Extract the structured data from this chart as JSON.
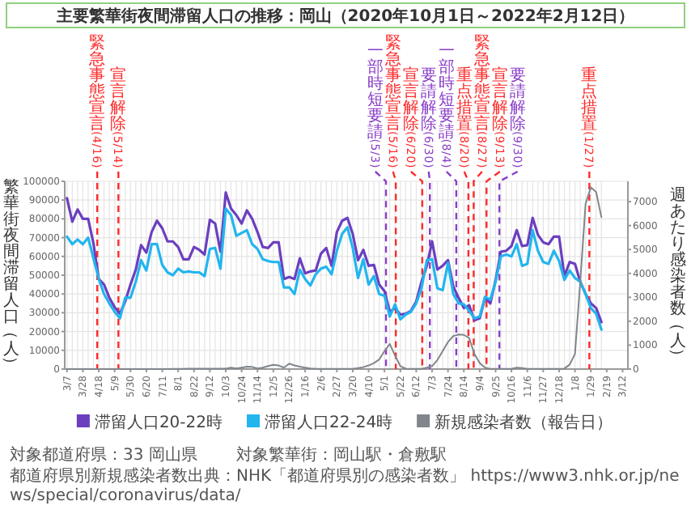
{
  "chart_data": {
    "type": "line",
    "title": "主要繁華街夜間滞留人口の推移：岡山（2020年10月1日～2022年2月12日）",
    "ylabel": "繁華街夜間滞留人口（人）",
    "y2label": "週あたり感染者数（人）",
    "x": [
      "2020-03-07",
      "2020-03-14",
      "2020-03-21",
      "2020-03-28",
      "2020-04-04",
      "2020-04-11",
      "2020-04-18",
      "2020-04-25",
      "2020-05-02",
      "2020-05-09",
      "2020-05-16",
      "2020-05-23",
      "2020-05-30",
      "2020-06-06",
      "2020-06-13",
      "2020-06-20",
      "2020-06-27",
      "2020-07-04",
      "2020-07-11",
      "2020-07-18",
      "2020-07-25",
      "2020-08-01",
      "2020-08-08",
      "2020-08-15",
      "2020-08-22",
      "2020-08-29",
      "2020-09-05",
      "2020-09-12",
      "2020-09-19",
      "2020-09-26",
      "2020-10-03",
      "2020-10-10",
      "2020-10-17",
      "2020-10-24",
      "2020-10-31",
      "2020-11-07",
      "2020-11-14",
      "2020-11-21",
      "2020-11-28",
      "2020-12-05",
      "2020-12-12",
      "2020-12-19",
      "2020-12-26",
      "2021-01-02",
      "2021-01-09",
      "2021-01-16",
      "2021-01-23",
      "2021-01-30",
      "2021-02-06",
      "2021-02-13",
      "2021-02-20",
      "2021-02-27",
      "2021-03-06",
      "2021-03-13",
      "2021-03-20",
      "2021-03-27",
      "2021-04-03",
      "2021-04-10",
      "2021-04-17",
      "2021-04-24",
      "2021-05-01",
      "2021-05-08",
      "2021-05-15",
      "2021-05-22",
      "2021-05-29",
      "2021-06-05",
      "2021-06-12",
      "2021-06-19",
      "2021-06-26",
      "2021-07-03",
      "2021-07-10",
      "2021-07-17",
      "2021-07-24",
      "2021-07-31",
      "2021-08-07",
      "2021-08-14",
      "2021-08-21",
      "2021-08-28",
      "2021-09-04",
      "2021-09-11",
      "2021-09-18",
      "2021-09-25",
      "2021-10-02",
      "2021-10-09",
      "2021-10-16",
      "2021-10-23",
      "2021-10-30",
      "2021-11-06",
      "2021-11-13",
      "2021-11-20",
      "2021-11-27",
      "2021-12-04",
      "2021-12-11",
      "2021-12-18",
      "2021-12-25",
      "2022-01-01",
      "2022-01-08",
      "2022-01-15",
      "2022-01-22",
      "2022-01-29",
      "2022-02-05",
      "2022-02-12"
    ],
    "series": [
      {
        "name": "滞留人口20-22時",
        "color": "#6b3fbf",
        "values": [
          91000,
          78500,
          85000,
          80000,
          80000,
          67000,
          48000,
          45000,
          38000,
          33000,
          29500,
          36000,
          45000,
          53000,
          66000,
          62000,
          73000,
          79000,
          75000,
          68000,
          68000,
          65000,
          58500,
          58500,
          65000,
          63500,
          61000,
          79500,
          77500,
          62500,
          94000,
          85500,
          82000,
          77500,
          84500,
          80000,
          73000,
          65000,
          64500,
          67500,
          67500,
          48000,
          49000,
          48000,
          59000,
          51000,
          52000,
          52500,
          61500,
          64500,
          55000,
          73000,
          79000,
          80500,
          72000,
          58000,
          63500,
          55000,
          55500,
          45000,
          41500,
          30500,
          32500,
          29000,
          29500,
          31000,
          36000,
          46500,
          55000,
          68000,
          53000,
          55000,
          58000,
          44000,
          38000,
          32500,
          34000,
          26000,
          27000,
          38000,
          35000,
          47500,
          62500,
          63000,
          65500,
          74000,
          65500,
          66000,
          80500,
          71500,
          67500,
          66500,
          70500,
          70500,
          49500,
          57000,
          56000,
          46500,
          40000,
          35000,
          32500,
          25000
        ]
      },
      {
        "name": "滞留人口22-24時",
        "color": "#22b5ee",
        "values": [
          70500,
          66500,
          69000,
          66500,
          70000,
          59000,
          48000,
          40000,
          35000,
          30500,
          27000,
          38000,
          38000,
          46500,
          58000,
          52500,
          66500,
          66500,
          55500,
          51500,
          50000,
          53500,
          51500,
          52000,
          51500,
          51500,
          49500,
          64000,
          64500,
          53500,
          85500,
          82000,
          71000,
          72500,
          74000,
          66500,
          64000,
          58500,
          57500,
          57000,
          57000,
          43500,
          43500,
          40000,
          53000,
          48000,
          44500,
          50500,
          53500,
          54500,
          50500,
          63000,
          72000,
          75500,
          64500,
          48500,
          58500,
          45000,
          49500,
          40000,
          39000,
          28000,
          34500,
          26500,
          29000,
          30500,
          35000,
          43000,
          58000,
          58500,
          43000,
          42000,
          56500,
          40000,
          35000,
          34500,
          31000,
          27000,
          28000,
          38500,
          37000,
          46500,
          60000,
          61000,
          60000,
          66500,
          55000,
          56000,
          74000,
          63000,
          57000,
          56000,
          63000,
          57500,
          47500,
          52500,
          48500,
          46500,
          40000,
          32500,
          29500,
          21000
        ]
      },
      {
        "name": "新規感染者数（報告日）",
        "color": "#80868c",
        "axis": "y2",
        "values": [
          0,
          0,
          0,
          0,
          0,
          0,
          0,
          0,
          0,
          0,
          0,
          0,
          0,
          0,
          0,
          0,
          0,
          0,
          0,
          0,
          10,
          10,
          10,
          15,
          15,
          20,
          20,
          20,
          20,
          20,
          20,
          60,
          25,
          60,
          100,
          90,
          25,
          60,
          125,
          175,
          150,
          60,
          226,
          150,
          100,
          60,
          25,
          15,
          10,
          10,
          10,
          10,
          10,
          5,
          10,
          40,
          80,
          150,
          250,
          400,
          750,
          1050,
          560,
          125,
          20,
          5,
          5,
          10,
          60,
          125,
          377,
          755,
          1130,
          1380,
          1445,
          1430,
          1300,
          630,
          250,
          60,
          10,
          10,
          10,
          10,
          10,
          60,
          40,
          10,
          10,
          10,
          10,
          10,
          10,
          5,
          20,
          190,
          630,
          3650,
          6900,
          7600,
          7400,
          6350
        ]
      }
    ],
    "xlim": [
      "2020-03-04",
      "2022-03-19"
    ],
    "xticks": [
      {
        "value": "2020-03-07",
        "label": "3/7"
      },
      {
        "value": "2020-03-28",
        "label": "3/28"
      },
      {
        "value": "2020-04-18",
        "label": "4/18"
      },
      {
        "value": "2020-05-09",
        "label": "5/9"
      },
      {
        "value": "2020-05-30",
        "label": "5/30"
      },
      {
        "value": "2020-06-20",
        "label": "6/20"
      },
      {
        "value": "2020-07-11",
        "label": "7/11"
      },
      {
        "value": "2020-08-01",
        "label": "8/1"
      },
      {
        "value": "2020-08-22",
        "label": "8/22"
      },
      {
        "value": "2020-09-12",
        "label": "9/12"
      },
      {
        "value": "2020-10-03",
        "label": "10/3"
      },
      {
        "value": "2020-10-24",
        "label": "10/24"
      },
      {
        "value": "2020-11-14",
        "label": "11/14"
      },
      {
        "value": "2020-12-05",
        "label": "12/5"
      },
      {
        "value": "2020-12-26",
        "label": "12/26"
      },
      {
        "value": "2021-01-16",
        "label": "1/16"
      },
      {
        "value": "2021-02-06",
        "label": "2/6"
      },
      {
        "value": "2021-02-27",
        "label": "2/27"
      },
      {
        "value": "2021-03-20",
        "label": "3/20"
      },
      {
        "value": "2021-04-10",
        "label": "4/10"
      },
      {
        "value": "2021-05-01",
        "label": "5/1"
      },
      {
        "value": "2021-05-22",
        "label": "5/22"
      },
      {
        "value": "2021-06-12",
        "label": "6/12"
      },
      {
        "value": "2021-07-03",
        "label": "7/3"
      },
      {
        "value": "2021-07-24",
        "label": "7/24"
      },
      {
        "value": "2021-08-14",
        "label": "8/14"
      },
      {
        "value": "2021-09-04",
        "label": "9/4"
      },
      {
        "value": "2021-09-25",
        "label": "9/25"
      },
      {
        "value": "2021-10-16",
        "label": "10/16"
      },
      {
        "value": "2021-11-06",
        "label": "11/6"
      },
      {
        "value": "2021-11-27",
        "label": "11/27"
      },
      {
        "value": "2021-12-18",
        "label": "12/18"
      },
      {
        "value": "2022-01-08",
        "label": "1/8"
      },
      {
        "value": "2022-01-29",
        "label": "1/29"
      },
      {
        "value": "2022-02-19",
        "label": "2/19"
      },
      {
        "value": "2022-03-12",
        "label": "3/12"
      }
    ],
    "ylim": [
      0,
      100000
    ],
    "yticks": [
      0,
      10000,
      20000,
      30000,
      40000,
      50000,
      60000,
      70000,
      80000,
      90000,
      100000
    ],
    "y2lim": [
      0,
      7850
    ],
    "y2ticks": [
      0,
      1000,
      2000,
      3000,
      4000,
      5000,
      6000,
      7000
    ],
    "ref_lines": [
      {
        "axis": "x",
        "value": "2020-04-16",
        "label": "緊急事態宣言(4/16)",
        "color": "#ff2a2a",
        "line_style": "dashed"
      },
      {
        "axis": "x",
        "value": "2020-05-14",
        "label": "宣言解除(5/14)",
        "color": "#ff2a2a",
        "line_style": "dashed"
      },
      {
        "axis": "x",
        "value": "2021-05-03",
        "label": "一部時短要請(5/3)",
        "color": "#8a3fc8",
        "line_style": "dashed"
      },
      {
        "axis": "x",
        "value": "2021-05-16",
        "label": "緊急事態宣言(5/16)",
        "color": "#ff2a2a",
        "line_style": "dashed"
      },
      {
        "axis": "x",
        "value": "2021-06-20",
        "label": "宣言解除(6/20)",
        "color": "#ff2a2a",
        "line_style": "dashed"
      },
      {
        "axis": "x",
        "value": "2021-06-30",
        "label": "要請解除(6/30)",
        "color": "#8a3fc8",
        "line_style": "dashed"
      },
      {
        "axis": "x",
        "value": "2021-08-04",
        "label": "一部時短要請(8/4)",
        "color": "#8a3fc8",
        "line_style": "dashed"
      },
      {
        "axis": "x",
        "value": "2021-08-20",
        "label": "重点措置(8/20)",
        "color": "#ff2a2a",
        "line_style": "dashed"
      },
      {
        "axis": "x",
        "value": "2021-08-27",
        "label": "緊急事態宣言(8/27)",
        "color": "#ff2a2a",
        "line_style": "dashed"
      },
      {
        "axis": "x",
        "value": "2021-09-13",
        "label": "宣言解除(9/13)",
        "color": "#ff2a2a",
        "line_style": "dashed"
      },
      {
        "axis": "x",
        "value": "2021-09-30",
        "label": "要請解除(9/30)",
        "color": "#8a3fc8",
        "line_style": "dashed"
      },
      {
        "axis": "x",
        "value": "2022-01-27",
        "label": "重点措置(1/27)",
        "color": "#ff2a2a",
        "line_style": "dashed"
      }
    ],
    "grid": true,
    "legend": "bottom",
    "annotations": [
      "対象都道府県：33 岡山県",
      "対象繁華街：岡山駅・倉敷駅",
      "都道府県別新規感染者数出典：NHK「都道府県別の感染者数」 https://www3.nhk.or.jp/news/special/coronavirus/data/"
    ]
  }
}
